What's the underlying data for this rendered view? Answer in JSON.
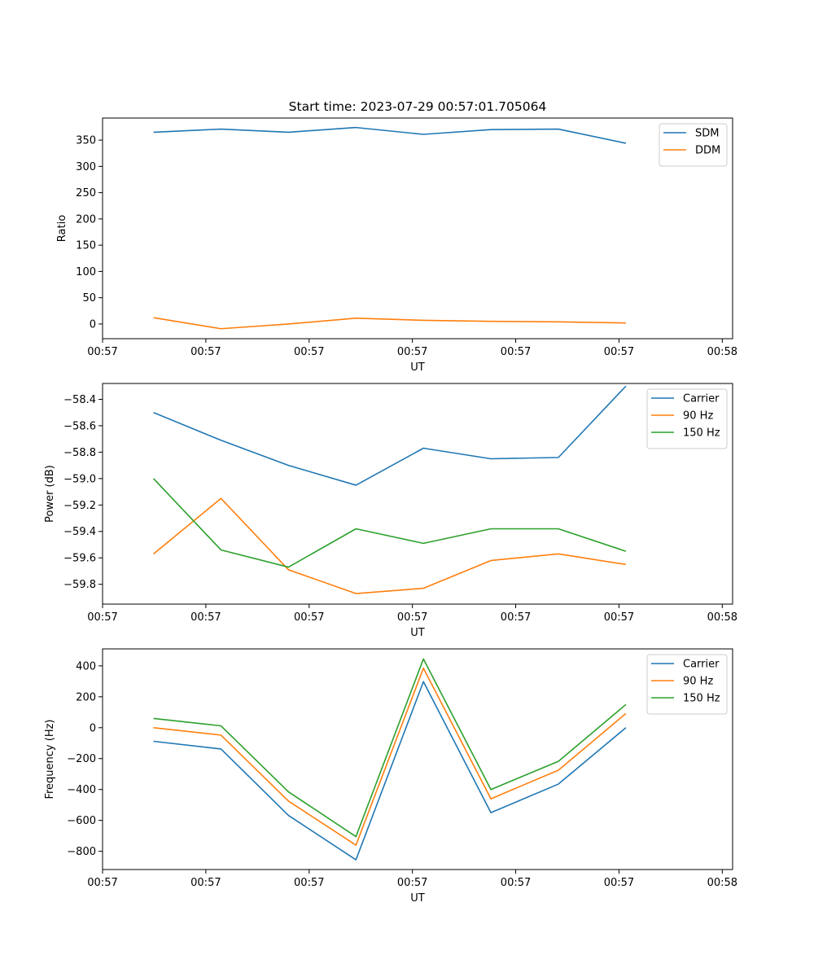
{
  "chart_data": [
    {
      "type": "line",
      "title": "Start time: 2023-07-29 00:57:01.705064",
      "xlabel": "UT",
      "ylabel": "Ratio",
      "xlim": [
        0,
        9.15
      ],
      "ylim": [
        -28,
        392
      ],
      "x_ticks": [
        {
          "pos": 0,
          "label": "00:57"
        },
        {
          "pos": 1.5,
          "label": "00:57"
        },
        {
          "pos": 3,
          "label": "00:57"
        },
        {
          "pos": 4.5,
          "label": "00:57"
        },
        {
          "pos": 6,
          "label": "00:57"
        },
        {
          "pos": 7.5,
          "label": "00:57"
        },
        {
          "pos": 9,
          "label": "00:58"
        }
      ],
      "y_ticks": [
        0,
        50,
        100,
        150,
        200,
        250,
        300,
        350
      ],
      "x": [
        0.74,
        1.72,
        2.7,
        3.68,
        4.66,
        5.64,
        6.62,
        7.6
      ],
      "series": [
        {
          "name": "SDM",
          "color": "#1f77b4",
          "values": [
            365,
            371,
            365,
            374,
            361,
            370,
            371,
            344
          ]
        },
        {
          "name": "DDM",
          "color": "#ff7f0e",
          "values": [
            12,
            -9,
            0,
            11,
            7,
            5,
            4,
            2
          ]
        }
      ],
      "legend": "top-right"
    },
    {
      "type": "line",
      "title": "",
      "xlabel": "UT",
      "ylabel": "Power (dB)",
      "xlim": [
        0,
        9.15
      ],
      "ylim": [
        -59.95,
        -58.28
      ],
      "x_ticks": [
        {
          "pos": 0,
          "label": "00:57"
        },
        {
          "pos": 1.5,
          "label": "00:57"
        },
        {
          "pos": 3,
          "label": "00:57"
        },
        {
          "pos": 4.5,
          "label": "00:57"
        },
        {
          "pos": 6,
          "label": "00:57"
        },
        {
          "pos": 7.5,
          "label": "00:57"
        },
        {
          "pos": 9,
          "label": "00:58"
        }
      ],
      "y_ticks": [
        -59.8,
        -59.6,
        -59.4,
        -59.2,
        -59.0,
        -58.8,
        -58.6,
        -58.4
      ],
      "y_tick_labels": [
        "−59.8",
        "−59.6",
        "−59.4",
        "−59.2",
        "−59.0",
        "−58.8",
        "−58.6",
        "−58.4"
      ],
      "x": [
        0.74,
        1.72,
        2.7,
        3.68,
        4.66,
        5.64,
        6.62,
        7.6
      ],
      "series": [
        {
          "name": "Carrier",
          "color": "#1f77b4",
          "values": [
            -58.5,
            -58.71,
            -58.9,
            -59.05,
            -58.77,
            -58.85,
            -58.84,
            -58.3
          ]
        },
        {
          "name": "90 Hz",
          "color": "#ff7f0e",
          "values": [
            -59.57,
            -59.15,
            -59.69,
            -59.87,
            -59.83,
            -59.62,
            -59.57,
            -59.65
          ]
        },
        {
          "name": "150 Hz",
          "color": "#2ca02c",
          "values": [
            -59.0,
            -59.54,
            -59.67,
            -59.38,
            -59.49,
            -59.38,
            -59.38,
            -59.55
          ]
        }
      ],
      "legend": "top-right"
    },
    {
      "type": "line",
      "title": "",
      "xlabel": "UT",
      "ylabel": "Frequency (Hz)",
      "xlim": [
        0,
        9.15
      ],
      "ylim": [
        -918,
        510
      ],
      "x_ticks": [
        {
          "pos": 0,
          "label": "00:57"
        },
        {
          "pos": 1.5,
          "label": "00:57"
        },
        {
          "pos": 3,
          "label": "00:57"
        },
        {
          "pos": 4.5,
          "label": "00:57"
        },
        {
          "pos": 6,
          "label": "00:57"
        },
        {
          "pos": 7.5,
          "label": "00:57"
        },
        {
          "pos": 9,
          "label": "00:58"
        }
      ],
      "y_ticks": [
        -800,
        -600,
        -400,
        -200,
        0,
        200,
        400
      ],
      "y_tick_labels": [
        "−800",
        "−600",
        "−400",
        "−200",
        "0",
        "200",
        "400"
      ],
      "x": [
        0.74,
        1.72,
        2.7,
        3.68,
        4.66,
        5.64,
        6.62,
        7.6
      ],
      "series": [
        {
          "name": "Carrier",
          "color": "#1f77b4",
          "values": [
            -88,
            -138,
            -568,
            -855,
            298,
            -550,
            -365,
            0
          ]
        },
        {
          "name": "90 Hz",
          "color": "#ff7f0e",
          "values": [
            0,
            -48,
            -475,
            -760,
            385,
            -460,
            -275,
            92
          ]
        },
        {
          "name": "150 Hz",
          "color": "#2ca02c",
          "values": [
            60,
            12,
            -415,
            -705,
            445,
            -400,
            -218,
            150
          ]
        }
      ],
      "legend": "top-right"
    }
  ]
}
